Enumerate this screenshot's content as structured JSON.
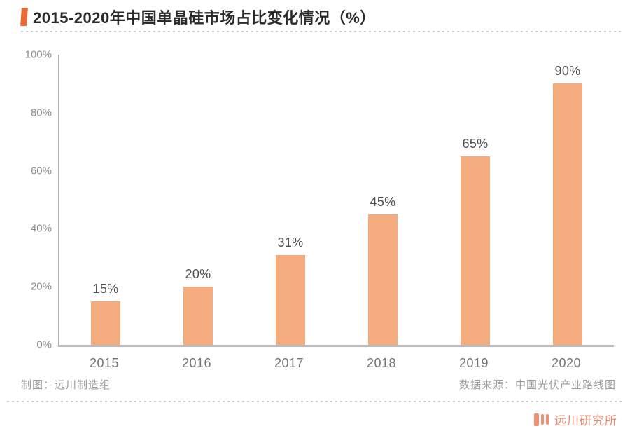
{
  "title": "2015-2020年中国单晶硅市场占比变化情况（%）",
  "chart_data": {
    "type": "bar",
    "title": "2015-2020年中国单晶硅市场占比变化情况（%）",
    "categories": [
      "2015",
      "2016",
      "2017",
      "2018",
      "2019",
      "2020"
    ],
    "values": [
      15,
      20,
      31,
      45,
      65,
      90
    ],
    "value_labels": [
      "15%",
      "20%",
      "31%",
      "45%",
      "65%",
      "90%"
    ],
    "xlabel": "",
    "ylabel": "",
    "ylim": [
      0,
      100
    ],
    "y_ticks": [
      100,
      80,
      60,
      40,
      20,
      0
    ],
    "y_tick_labels": [
      "100%",
      "80%",
      "60%",
      "40%",
      "20%",
      "0%"
    ],
    "grid": false,
    "legend": false,
    "bar_color": "#f4ac7e"
  },
  "footer": {
    "credit_left": "制图：远川制造组",
    "source_right": "数据来源：中国光伏产业路线图"
  },
  "branding": {
    "logo_text": "远川研究所"
  },
  "colors": {
    "accent": "#e96a35",
    "bar": "#f4ac7e",
    "axis_line": "#b3b3b3",
    "y_tick_label": "#8c8c8c",
    "x_category_label": "#757575",
    "value_label": "#4f4f4f",
    "footer_text": "#9b9b9b",
    "logo": "#ef8f74",
    "title_text": "#2b2b2b",
    "separator": "#cccccc"
  }
}
